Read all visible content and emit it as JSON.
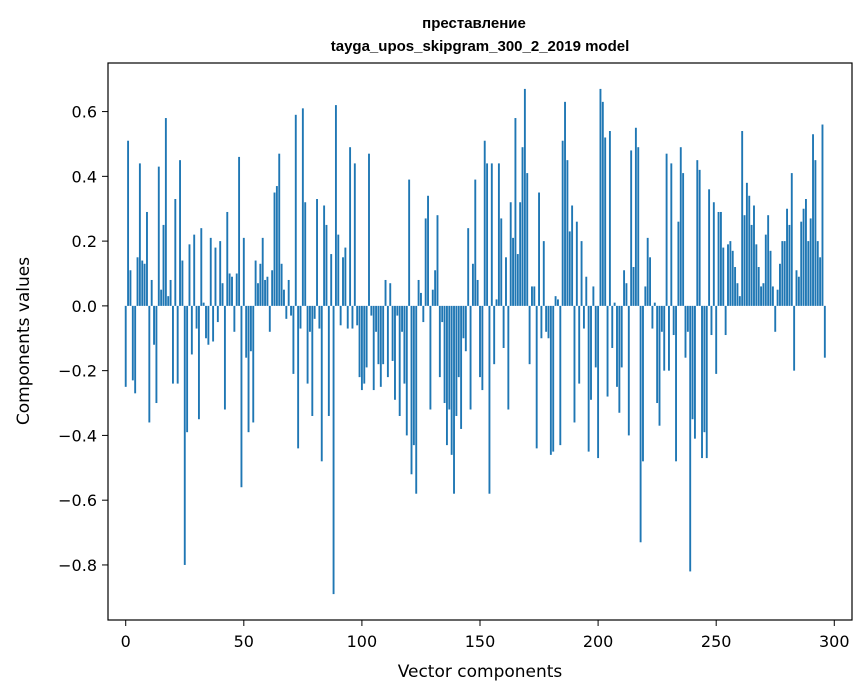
{
  "chart_data": {
    "type": "bar",
    "title_line1": "преставление",
    "title_line2": "tayga_upos_skipgram_300_2_2019 model",
    "xlabel": "Vector components",
    "ylabel": "Components values",
    "xlim": [
      -7.5,
      307.5
    ],
    "ylim": [
      -0.97,
      0.75
    ],
    "xticks": [
      0,
      50,
      100,
      150,
      200,
      250,
      300
    ],
    "xtick_labels": [
      "0",
      "50",
      "100",
      "150",
      "200",
      "250",
      "300"
    ],
    "yticks": [
      -0.8,
      -0.6,
      -0.4,
      -0.2,
      0.0,
      0.2,
      0.4,
      0.6
    ],
    "ytick_labels": [
      "−0.8",
      "−0.6",
      "−0.4",
      "−0.2",
      "0.0",
      "0.2",
      "0.4",
      "0.6"
    ],
    "bar_color": "#1f77b4",
    "values": [
      -0.25,
      0.51,
      0.11,
      -0.23,
      -0.27,
      0.15,
      0.44,
      0.14,
      0.13,
      0.29,
      -0.36,
      0.08,
      -0.12,
      -0.3,
      0.43,
      0.05,
      0.25,
      0.58,
      0.03,
      0.08,
      -0.24,
      0.33,
      -0.24,
      0.45,
      0.14,
      -0.8,
      -0.39,
      0.19,
      -0.15,
      0.22,
      -0.07,
      -0.35,
      0.24,
      0.01,
      -0.1,
      -0.12,
      0.21,
      -0.11,
      0.18,
      -0.05,
      0.2,
      0.07,
      -0.32,
      0.29,
      0.1,
      0.09,
      -0.08,
      0.1,
      0.46,
      -0.56,
      0.21,
      -0.16,
      -0.39,
      -0.14,
      -0.36,
      0.14,
      0.07,
      0.13,
      0.21,
      0.08,
      0.09,
      -0.08,
      0.11,
      0.35,
      0.37,
      0.47,
      0.13,
      0.05,
      -0.04,
      0.08,
      -0.03,
      -0.21,
      0.59,
      -0.44,
      -0.07,
      0.61,
      0.32,
      -0.24,
      -0.08,
      -0.34,
      -0.04,
      0.33,
      -0.07,
      -0.48,
      0.31,
      0.25,
      -0.34,
      0.16,
      -0.89,
      0.62,
      0.22,
      -0.06,
      0.15,
      0.18,
      -0.07,
      0.49,
      -0.07,
      0.44,
      -0.06,
      -0.22,
      -0.26,
      -0.24,
      -0.19,
      0.47,
      -0.03,
      -0.26,
      -0.08,
      -0.18,
      -0.25,
      -0.18,
      0.08,
      -0.22,
      0.07,
      -0.17,
      -0.29,
      -0.03,
      -0.34,
      -0.08,
      -0.24,
      -0.4,
      0.39,
      -0.52,
      -0.43,
      -0.58,
      0.08,
      0.04,
      -0.05,
      0.27,
      0.34,
      -0.32,
      0.05,
      0.11,
      0.28,
      -0.22,
      -0.05,
      -0.3,
      -0.43,
      -0.32,
      -0.46,
      -0.58,
      -0.34,
      -0.22,
      -0.38,
      -0.1,
      -0.14,
      0.24,
      -0.32,
      0.13,
      0.39,
      0.08,
      -0.22,
      -0.26,
      0.51,
      0.44,
      -0.58,
      0.44,
      -0.18,
      0.02,
      0.44,
      0.27,
      -0.13,
      0.15,
      -0.32,
      0.32,
      0.21,
      0.58,
      0.16,
      0.32,
      0.49,
      0.67,
      0.41,
      -0.18,
      0.06,
      0.06,
      -0.44,
      0.35,
      -0.1,
      0.2,
      -0.08,
      -0.1,
      -0.46,
      -0.45,
      0.03,
      0.02,
      -0.43,
      0.51,
      0.63,
      0.45,
      0.23,
      0.31,
      -0.36,
      0.26,
      -0.24,
      0.2,
      -0.07,
      0.09,
      -0.45,
      -0.29,
      0.06,
      -0.19,
      -0.47,
      0.67,
      0.63,
      0.52,
      -0.28,
      0.54,
      -0.13,
      0.01,
      -0.25,
      -0.33,
      -0.19,
      0.11,
      0.07,
      -0.4,
      0.48,
      0.12,
      0.55,
      0.49,
      -0.73,
      -0.48,
      0.06,
      0.21,
      0.15,
      -0.07,
      0.01,
      -0.3,
      -0.37,
      -0.08,
      -0.2,
      0.47,
      -0.2,
      0.44,
      -0.09,
      -0.48,
      0.26,
      0.49,
      0.41,
      -0.16,
      -0.08,
      -0.82,
      -0.35,
      -0.41,
      0.45,
      0.42,
      -0.47,
      -0.39,
      -0.47,
      0.36,
      -0.09,
      0.32,
      -0.21,
      0.29,
      0.29,
      0.18,
      -0.09,
      0.19,
      0.2,
      0.17,
      0.12,
      0.07,
      0.03,
      0.54,
      0.28,
      0.38,
      0.34,
      0.25,
      0.31,
      0.19,
      0.12,
      0.06,
      0.07,
      0.22,
      0.28,
      0.17,
      0.06,
      -0.08,
      0.05,
      0.13,
      0.2,
      0.2,
      0.3,
      0.25,
      0.41,
      -0.2,
      0.11,
      0.09,
      0.26,
      0.3,
      0.33,
      0.2,
      0.27,
      0.53,
      0.45,
      0.2,
      0.15,
      0.56,
      -0.16
    ]
  }
}
